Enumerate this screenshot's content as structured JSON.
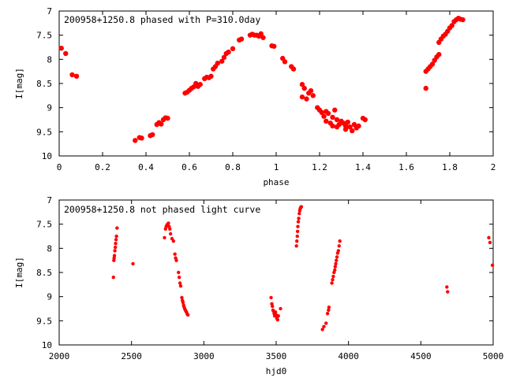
{
  "chart_data": [
    {
      "type": "scatter",
      "title": "200958+1250.8 phased with P=310.0day",
      "xlabel": "phase",
      "ylabel": "I[mag]",
      "xlim": [
        0,
        2
      ],
      "ylim": [
        7,
        10
      ],
      "y_inverted": true,
      "grid": false,
      "xticks": [
        0,
        0.2,
        0.4,
        0.6,
        0.8,
        1,
        1.2,
        1.4,
        1.6,
        1.8,
        2
      ],
      "xtick_labels": [
        "0",
        "0.2",
        "0.4",
        "0.6",
        "0.8",
        "1",
        "1.2",
        "1.4",
        "1.6",
        "1.8",
        "2"
      ],
      "yticks": [
        7,
        7.5,
        8,
        8.5,
        9,
        9.5,
        10
      ],
      "ytick_labels": [
        "7",
        "7.5",
        "8",
        "8.5",
        "9",
        "9.5",
        "10"
      ],
      "color": "#ff0000",
      "series": [
        {
          "points": [
            [
              0.01,
              7.77
            ],
            [
              0.03,
              7.88
            ],
            [
              0.06,
              8.32
            ],
            [
              0.08,
              8.35
            ],
            [
              0.35,
              9.68
            ],
            [
              0.37,
              9.62
            ],
            [
              0.38,
              9.63
            ],
            [
              0.42,
              9.58
            ],
            [
              0.43,
              9.56
            ],
            [
              0.45,
              9.35
            ],
            [
              0.46,
              9.31
            ],
            [
              0.47,
              9.34
            ],
            [
              0.48,
              9.25
            ],
            [
              0.49,
              9.21
            ],
            [
              0.5,
              9.22
            ],
            [
              0.58,
              8.7
            ],
            [
              0.59,
              8.68
            ],
            [
              0.6,
              8.64
            ],
            [
              0.61,
              8.6
            ],
            [
              0.62,
              8.57
            ],
            [
              0.63,
              8.5
            ],
            [
              0.64,
              8.56
            ],
            [
              0.65,
              8.52
            ],
            [
              0.67,
              8.4
            ],
            [
              0.68,
              8.37
            ],
            [
              0.69,
              8.38
            ],
            [
              0.7,
              8.35
            ],
            [
              0.71,
              8.2
            ],
            [
              0.72,
              8.15
            ],
            [
              0.73,
              8.08
            ],
            [
              0.75,
              8.04
            ],
            [
              0.76,
              7.96
            ],
            [
              0.77,
              7.88
            ],
            [
              0.78,
              7.85
            ],
            [
              0.8,
              7.78
            ],
            [
              0.83,
              7.6
            ],
            [
              0.84,
              7.58
            ],
            [
              0.88,
              7.5
            ],
            [
              0.89,
              7.48
            ],
            [
              0.9,
              7.5
            ],
            [
              0.91,
              7.5
            ],
            [
              0.92,
              7.52
            ],
            [
              0.93,
              7.47
            ],
            [
              0.94,
              7.55
            ],
            [
              0.98,
              7.72
            ],
            [
              0.99,
              7.73
            ],
            [
              1.03,
              7.98
            ],
            [
              1.04,
              8.05
            ],
            [
              1.07,
              8.15
            ],
            [
              1.08,
              8.2
            ],
            [
              1.12,
              8.52
            ],
            [
              1.13,
              8.6
            ],
            [
              1.12,
              8.78
            ],
            [
              1.14,
              8.82
            ],
            [
              1.15,
              8.7
            ],
            [
              1.16,
              8.65
            ],
            [
              1.17,
              8.75
            ],
            [
              1.19,
              9.0
            ],
            [
              1.2,
              9.05
            ],
            [
              1.21,
              9.1
            ],
            [
              1.22,
              9.18
            ],
            [
              1.23,
              9.08
            ],
            [
              1.23,
              9.28
            ],
            [
              1.24,
              9.12
            ],
            [
              1.25,
              9.32
            ],
            [
              1.26,
              9.2
            ],
            [
              1.26,
              9.38
            ],
            [
              1.27,
              9.05
            ],
            [
              1.28,
              9.25
            ],
            [
              1.28,
              9.4
            ],
            [
              1.29,
              9.35
            ],
            [
              1.3,
              9.28
            ],
            [
              1.31,
              9.32
            ],
            [
              1.32,
              9.38
            ],
            [
              1.32,
              9.45
            ],
            [
              1.33,
              9.3
            ],
            [
              1.34,
              9.4
            ],
            [
              1.35,
              9.48
            ],
            [
              1.36,
              9.35
            ],
            [
              1.37,
              9.42
            ],
            [
              1.38,
              9.38
            ],
            [
              1.4,
              9.22
            ],
            [
              1.41,
              9.25
            ],
            [
              1.69,
              8.25
            ],
            [
              1.69,
              8.6
            ],
            [
              1.7,
              8.2
            ],
            [
              1.71,
              8.15
            ],
            [
              1.72,
              8.1
            ],
            [
              1.73,
              8.02
            ],
            [
              1.74,
              7.95
            ],
            [
              1.75,
              7.9
            ],
            [
              1.75,
              7.65
            ],
            [
              1.76,
              7.58
            ],
            [
              1.77,
              7.52
            ],
            [
              1.78,
              7.48
            ],
            [
              1.79,
              7.42
            ],
            [
              1.8,
              7.35
            ],
            [
              1.81,
              7.3
            ],
            [
              1.82,
              7.22
            ],
            [
              1.83,
              7.18
            ],
            [
              1.84,
              7.15
            ],
            [
              1.85,
              7.17
            ],
            [
              1.86,
              7.18
            ]
          ]
        }
      ]
    },
    {
      "type": "scatter",
      "title": "200958+1250.8 not phased light curve",
      "xlabel": "hjd0",
      "ylabel": "I[mag]",
      "xlim": [
        2000,
        5000
      ],
      "ylim": [
        7,
        10
      ],
      "y_inverted": true,
      "grid": false,
      "xticks": [
        2000,
        2500,
        3000,
        3500,
        4000,
        4500,
        5000
      ],
      "xtick_labels": [
        "2000",
        "2500",
        "3000",
        "3500",
        "4000",
        "4500",
        "5000"
      ],
      "yticks": [
        7,
        7.5,
        8,
        8.5,
        9,
        9.5,
        10
      ],
      "ytick_labels": [
        "7",
        "7.5",
        "8",
        "8.5",
        "9",
        "9.5",
        "10"
      ],
      "color": "#ff0000",
      "series": [
        {
          "points": [
            [
              2375,
              8.6
            ],
            [
              2378,
              8.25
            ],
            [
              2380,
              8.2
            ],
            [
              2382,
              8.15
            ],
            [
              2385,
              8.05
            ],
            [
              2388,
              7.98
            ],
            [
              2390,
              7.9
            ],
            [
              2393,
              7.82
            ],
            [
              2396,
              7.75
            ],
            [
              2400,
              7.58
            ],
            [
              2510,
              8.32
            ],
            [
              2728,
              7.78
            ],
            [
              2735,
              7.6
            ],
            [
              2740,
              7.55
            ],
            [
              2745,
              7.52
            ],
            [
              2750,
              7.5
            ],
            [
              2755,
              7.48
            ],
            [
              2760,
              7.55
            ],
            [
              2765,
              7.6
            ],
            [
              2770,
              7.7
            ],
            [
              2780,
              7.8
            ],
            [
              2790,
              7.85
            ],
            [
              2800,
              8.12
            ],
            [
              2805,
              8.2
            ],
            [
              2810,
              8.25
            ],
            [
              2825,
              8.5
            ],
            [
              2830,
              8.6
            ],
            [
              2835,
              8.72
            ],
            [
              2840,
              8.78
            ],
            [
              2848,
              9.02
            ],
            [
              2852,
              9.08
            ],
            [
              2856,
              9.12
            ],
            [
              2860,
              9.18
            ],
            [
              2864,
              9.22
            ],
            [
              2868,
              9.25
            ],
            [
              2872,
              9.28
            ],
            [
              2876,
              9.3
            ],
            [
              2880,
              9.32
            ],
            [
              2885,
              9.36
            ],
            [
              2890,
              9.38
            ],
            [
              3465,
              9.02
            ],
            [
              3470,
              9.15
            ],
            [
              3474,
              9.2
            ],
            [
              3478,
              9.28
            ],
            [
              3482,
              9.3
            ],
            [
              3486,
              9.35
            ],
            [
              3490,
              9.4
            ],
            [
              3495,
              9.32
            ],
            [
              3500,
              9.38
            ],
            [
              3505,
              9.45
            ],
            [
              3510,
              9.48
            ],
            [
              3515,
              9.4
            ],
            [
              3530,
              9.25
            ],
            [
              3640,
              7.95
            ],
            [
              3643,
              7.85
            ],
            [
              3646,
              7.75
            ],
            [
              3648,
              7.65
            ],
            [
              3650,
              7.55
            ],
            [
              3653,
              7.45
            ],
            [
              3656,
              7.38
            ],
            [
              3660,
              7.28
            ],
            [
              3663,
              7.22
            ],
            [
              3666,
              7.18
            ],
            [
              3670,
              7.15
            ],
            [
              3674,
              7.14
            ],
            [
              3820,
              9.68
            ],
            [
              3830,
              9.62
            ],
            [
              3845,
              9.55
            ],
            [
              3855,
              9.35
            ],
            [
              3862,
              9.28
            ],
            [
              3865,
              9.22
            ],
            [
              3885,
              8.72
            ],
            [
              3890,
              8.65
            ],
            [
              3895,
              8.58
            ],
            [
              3900,
              8.5
            ],
            [
              3905,
              8.45
            ],
            [
              3908,
              8.38
            ],
            [
              3912,
              8.32
            ],
            [
              3916,
              8.25
            ],
            [
              3920,
              8.18
            ],
            [
              3925,
              8.1
            ],
            [
              3930,
              8.05
            ],
            [
              3935,
              7.95
            ],
            [
              3940,
              7.85
            ],
            [
              4680,
              8.8
            ],
            [
              4685,
              8.9
            ],
            [
              4970,
              7.78
            ],
            [
              4978,
              7.88
            ],
            [
              4995,
              8.35
            ]
          ]
        }
      ]
    }
  ]
}
